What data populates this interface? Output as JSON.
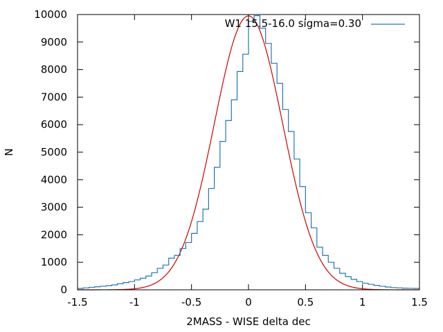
{
  "chart_data": {
    "type": "line",
    "title": "",
    "xlabel": "2MASS - WISE delta dec",
    "ylabel": "N",
    "xlim": [
      -1.5,
      1.5
    ],
    "ylim": [
      0,
      10000
    ],
    "x_ticks": [
      -1.5,
      -1,
      -0.5,
      0,
      0.5,
      1,
      1.5
    ],
    "x_tick_labels": [
      "-1.5",
      "-1",
      "-0.5",
      "0",
      "0.5",
      "1",
      "1.5"
    ],
    "y_ticks": [
      0,
      1000,
      2000,
      3000,
      4000,
      5000,
      6000,
      7000,
      8000,
      9000,
      10000
    ],
    "y_tick_labels": [
      "0",
      "1000",
      "2000",
      "3000",
      "4000",
      "5000",
      "6000",
      "7000",
      "8000",
      "9000",
      "10000"
    ],
    "grid": false,
    "legend_position": "top-right",
    "series": [
      {
        "name": "W1 15.5-16.0  sigma=0.30",
        "style": "steps",
        "color": "#1f77b4",
        "bin_width": 0.05,
        "bin_starts": [
          -1.5,
          -1.45,
          -1.4,
          -1.35,
          -1.3,
          -1.25,
          -1.2,
          -1.15,
          -1.1,
          -1.05,
          -1.0,
          -0.95,
          -0.9,
          -0.85,
          -0.8,
          -0.75,
          -0.7,
          -0.65,
          -0.6,
          -0.55,
          -0.5,
          -0.45,
          -0.4,
          -0.35,
          -0.3,
          -0.25,
          -0.2,
          -0.15,
          -0.1,
          -0.05,
          0.0,
          0.05,
          0.1,
          0.15,
          0.2,
          0.25,
          0.3,
          0.35,
          0.4,
          0.45,
          0.5,
          0.55,
          0.6,
          0.65,
          0.7,
          0.75,
          0.8,
          0.85,
          0.9,
          0.95,
          1.0,
          1.05,
          1.1,
          1.15,
          1.2,
          1.25,
          1.3,
          1.35,
          1.4,
          1.45
        ],
        "counts": [
          50,
          70,
          90,
          110,
          130,
          150,
          180,
          220,
          260,
          300,
          360,
          420,
          500,
          620,
          780,
          900,
          1150,
          1250,
          1500,
          1720,
          2050,
          2480,
          2930,
          3680,
          4450,
          5390,
          6150,
          6900,
          7930,
          8560,
          9750,
          9960,
          9500,
          8950,
          8230,
          7500,
          6550,
          5750,
          4750,
          3750,
          2800,
          2250,
          1550,
          1250,
          1000,
          780,
          600,
          480,
          380,
          300,
          240,
          200,
          160,
          130,
          100,
          80,
          70,
          60,
          55,
          50
        ]
      },
      {
        "name": "",
        "style": "gaussian",
        "color": "#cc0000",
        "amplitude": 9950,
        "mean": 0.0,
        "sigma": 0.3
      }
    ]
  }
}
